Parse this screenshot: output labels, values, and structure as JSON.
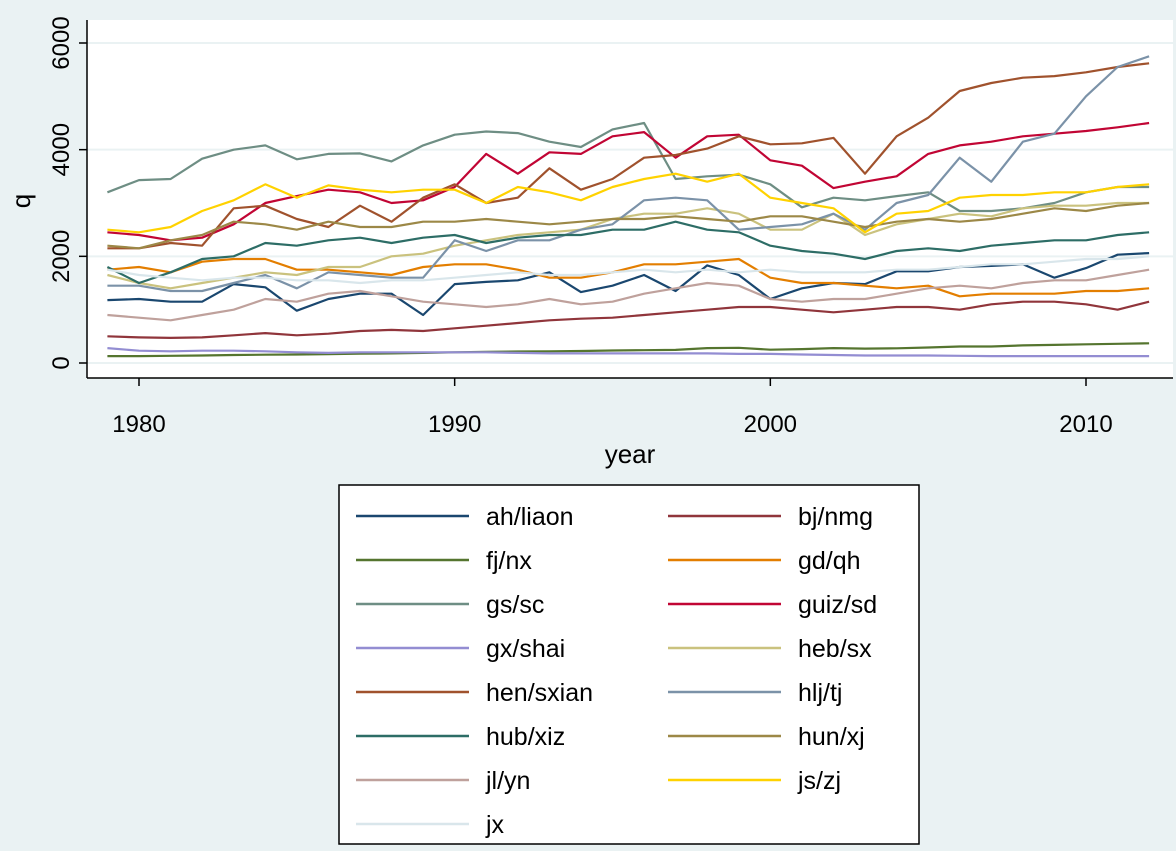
{
  "chart_data": {
    "type": "line",
    "xlabel": "year",
    "ylabel": "q",
    "xlim": [
      1979,
      2012
    ],
    "ylim": [
      0,
      6000
    ],
    "x_ticks": [
      1980,
      1990,
      2000,
      2010
    ],
    "y_ticks": [
      0,
      2000,
      4000,
      6000
    ],
    "grid": "horizontal gridlines on",
    "legend_position": "bottom",
    "x": [
      1979,
      1980,
      1981,
      1982,
      1983,
      1984,
      1985,
      1986,
      1987,
      1988,
      1989,
      1990,
      1991,
      1992,
      1993,
      1994,
      1995,
      1996,
      1997,
      1998,
      1999,
      2000,
      2001,
      2002,
      2003,
      2004,
      2005,
      2006,
      2007,
      2008,
      2009,
      2010,
      2011,
      2012
    ],
    "series": [
      {
        "name": "ah/liaon",
        "color": "#1a476f",
        "values": [
          1180,
          1200,
          1150,
          1150,
          1480,
          1420,
          980,
          1200,
          1300,
          1300,
          900,
          1480,
          1520,
          1550,
          1700,
          1330,
          1450,
          1650,
          1350,
          1830,
          1650,
          1200,
          1400,
          1500,
          1480,
          1720,
          1720,
          1800,
          1820,
          1850,
          1600,
          1780,
          2030,
          2060
        ]
      },
      {
        "name": "bj/nmg",
        "color": "#90353b",
        "values": [
          500,
          480,
          470,
          480,
          520,
          560,
          520,
          550,
          600,
          620,
          600,
          650,
          700,
          750,
          800,
          830,
          850,
          900,
          950,
          1000,
          1050,
          1050,
          1000,
          950,
          1000,
          1050,
          1050,
          1000,
          1100,
          1150,
          1150,
          1100,
          1000,
          1150
        ]
      },
      {
        "name": "fj/nx",
        "color": "#55752f",
        "values": [
          130,
          130,
          135,
          140,
          150,
          155,
          160,
          165,
          175,
          180,
          190,
          200,
          210,
          215,
          220,
          225,
          235,
          240,
          245,
          280,
          285,
          250,
          260,
          280,
          270,
          275,
          290,
          310,
          310,
          330,
          340,
          350,
          360,
          370
        ]
      },
      {
        "name": "gd/qh",
        "color": "#e37e00",
        "values": [
          1750,
          1800,
          1700,
          1900,
          1950,
          1950,
          1750,
          1750,
          1700,
          1650,
          1800,
          1850,
          1850,
          1750,
          1600,
          1600,
          1700,
          1850,
          1850,
          1900,
          1950,
          1600,
          1500,
          1500,
          1450,
          1400,
          1450,
          1250,
          1300,
          1300,
          1300,
          1350,
          1350,
          1400
        ]
      },
      {
        "name": "gs/sc",
        "color": "#6e8e84",
        "values": [
          3200,
          3430,
          3450,
          3830,
          4000,
          4080,
          3820,
          3920,
          3930,
          3780,
          4080,
          4280,
          4340,
          4310,
          4150,
          4050,
          4380,
          4500,
          3450,
          3500,
          3530,
          3350,
          2920,
          3100,
          3050,
          3130,
          3200,
          2850,
          2850,
          2900,
          3000,
          3200,
          3300,
          3300
        ]
      },
      {
        "name": "guiz/sd",
        "color": "#c10534",
        "values": [
          2450,
          2400,
          2300,
          2350,
          2600,
          3000,
          3130,
          3250,
          3200,
          3000,
          3050,
          3300,
          3920,
          3550,
          3950,
          3920,
          4250,
          4330,
          3850,
          4250,
          4280,
          3800,
          3700,
          3280,
          3400,
          3500,
          3920,
          4080,
          4150,
          4250,
          4300,
          4350,
          4420,
          4500
        ]
      },
      {
        "name": "gx/shai",
        "color": "#938dd2",
        "values": [
          280,
          230,
          220,
          230,
          230,
          220,
          200,
          190,
          200,
          200,
          200,
          200,
          200,
          190,
          180,
          180,
          180,
          180,
          180,
          180,
          170,
          170,
          160,
          150,
          140,
          140,
          140,
          135,
          130,
          130,
          130,
          130,
          130,
          130
        ]
      },
      {
        "name": "heb/sx",
        "color": "#cac27e",
        "values": [
          1650,
          1500,
          1400,
          1500,
          1600,
          1700,
          1650,
          1800,
          1800,
          2000,
          2050,
          2200,
          2300,
          2400,
          2450,
          2500,
          2700,
          2800,
          2800,
          2900,
          2800,
          2500,
          2500,
          2800,
          2400,
          2600,
          2700,
          2800,
          2750,
          2900,
          2950,
          2950,
          3000,
          3000
        ]
      },
      {
        "name": "hen/sxian",
        "color": "#a0522d",
        "values": [
          2150,
          2150,
          2250,
          2200,
          2900,
          2950,
          2700,
          2550,
          2950,
          2650,
          3100,
          3350,
          3000,
          3100,
          3650,
          3250,
          3450,
          3850,
          3900,
          4020,
          4250,
          4100,
          4120,
          4220,
          3550,
          4250,
          4600,
          5100,
          5250,
          5350,
          5380,
          5450,
          5550,
          5620
        ]
      },
      {
        "name": "hlj/tj",
        "color": "#7b92a8",
        "values": [
          1450,
          1450,
          1350,
          1350,
          1500,
          1650,
          1400,
          1700,
          1650,
          1600,
          1600,
          2300,
          2100,
          2300,
          2300,
          2500,
          2600,
          3050,
          3100,
          3050,
          2500,
          2550,
          2600,
          2800,
          2500,
          3000,
          3150,
          3850,
          3400,
          4150,
          4300,
          5000,
          5550,
          5750
        ]
      },
      {
        "name": "hub/xiz",
        "color": "#2d6d66",
        "values": [
          1800,
          1500,
          1700,
          1950,
          2000,
          2250,
          2200,
          2300,
          2350,
          2250,
          2350,
          2400,
          2250,
          2350,
          2400,
          2400,
          2500,
          2500,
          2650,
          2500,
          2450,
          2200,
          2100,
          2050,
          1950,
          2100,
          2150,
          2100,
          2200,
          2250,
          2300,
          2300,
          2400,
          2450
        ]
      },
      {
        "name": "hun/xj",
        "color": "#9c8847",
        "values": [
          2200,
          2150,
          2300,
          2400,
          2650,
          2600,
          2500,
          2650,
          2550,
          2550,
          2650,
          2650,
          2700,
          2650,
          2600,
          2650,
          2700,
          2700,
          2750,
          2700,
          2650,
          2750,
          2750,
          2650,
          2550,
          2650,
          2700,
          2650,
          2700,
          2800,
          2900,
          2850,
          2950,
          3000
        ]
      },
      {
        "name": "jl/yn",
        "color": "#bfa19c",
        "values": [
          900,
          850,
          800,
          900,
          1000,
          1200,
          1150,
          1300,
          1350,
          1250,
          1150,
          1100,
          1050,
          1100,
          1200,
          1100,
          1150,
          1300,
          1400,
          1500,
          1450,
          1200,
          1150,
          1200,
          1200,
          1300,
          1400,
          1450,
          1400,
          1500,
          1550,
          1550,
          1650,
          1750
        ]
      },
      {
        "name": "js/zj",
        "color": "#ffd200",
        "values": [
          2500,
          2450,
          2550,
          2850,
          3050,
          3350,
          3100,
          3330,
          3250,
          3200,
          3250,
          3250,
          3000,
          3300,
          3200,
          3050,
          3300,
          3450,
          3550,
          3400,
          3550,
          3100,
          3000,
          2900,
          2450,
          2800,
          2850,
          3100,
          3150,
          3150,
          3200,
          3200,
          3300,
          3350
        ]
      },
      {
        "name": "jx",
        "color": "#d9e6eb",
        "values": [
          1750,
          1650,
          1600,
          1550,
          1600,
          1600,
          1550,
          1550,
          1500,
          1550,
          1550,
          1600,
          1650,
          1700,
          1650,
          1650,
          1700,
          1750,
          1700,
          1750,
          1700,
          1750,
          1700,
          1700,
          1700,
          1750,
          1750,
          1800,
          1850,
          1850,
          1900,
          1950,
          1950,
          2000
        ]
      }
    ]
  }
}
